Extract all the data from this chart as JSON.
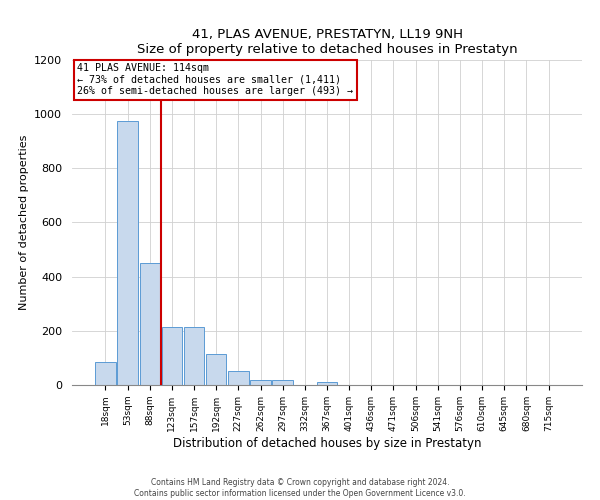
{
  "title": "41, PLAS AVENUE, PRESTATYN, LL19 9NH",
  "subtitle": "Size of property relative to detached houses in Prestatyn",
  "xlabel": "Distribution of detached houses by size in Prestatyn",
  "ylabel": "Number of detached properties",
  "bar_labels": [
    "18sqm",
    "53sqm",
    "88sqm",
    "123sqm",
    "157sqm",
    "192sqm",
    "227sqm",
    "262sqm",
    "297sqm",
    "332sqm",
    "367sqm",
    "401sqm",
    "436sqm",
    "471sqm",
    "506sqm",
    "541sqm",
    "576sqm",
    "610sqm",
    "645sqm",
    "680sqm",
    "715sqm"
  ],
  "bar_heights": [
    85,
    975,
    450,
    215,
    215,
    115,
    50,
    20,
    20,
    0,
    10,
    0,
    0,
    0,
    0,
    0,
    0,
    0,
    0,
    0,
    0
  ],
  "bar_color": "#c8d9ed",
  "bar_edge_color": "#5b9bd5",
  "vline_color": "#cc0000",
  "annotation_line1": "41 PLAS AVENUE: 114sqm",
  "annotation_line2": "← 73% of detached houses are smaller (1,411)",
  "annotation_line3": "26% of semi-detached houses are larger (493) →",
  "annotation_box_color": "#ffffff",
  "annotation_box_edge_color": "#cc0000",
  "ylim": [
    0,
    1200
  ],
  "yticks": [
    0,
    200,
    400,
    600,
    800,
    1000,
    1200
  ],
  "footer_line1": "Contains HM Land Registry data © Crown copyright and database right 2024.",
  "footer_line2": "Contains public sector information licensed under the Open Government Licence v3.0.",
  "background_color": "#ffffff",
  "grid_color": "#d0d0d0"
}
